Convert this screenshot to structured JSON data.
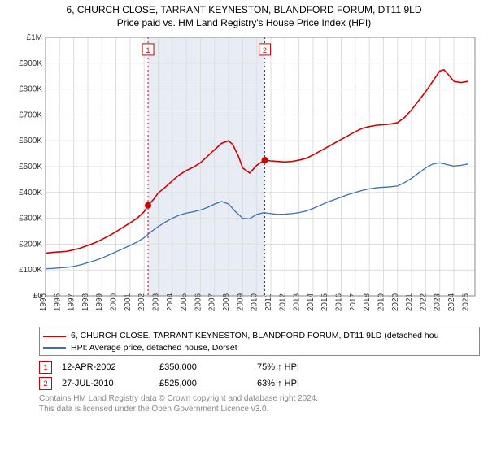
{
  "title_line1": "6, CHURCH CLOSE, TARRANT KEYNESTON, BLANDFORD FORUM, DT11 9LD",
  "title_line2": "Price paid vs. HM Land Registry's House Price Index (HPI)",
  "chart": {
    "type": "line",
    "plot_bg": "#ffffff",
    "shaded_bg": "#e8edf5",
    "grid_color": "#dddddd",
    "axis_color": "#888888",
    "x_years": [
      1995,
      1996,
      1997,
      1998,
      1999,
      2000,
      2001,
      2002,
      2003,
      2004,
      2005,
      2006,
      2007,
      2008,
      2009,
      2010,
      2011,
      2012,
      2013,
      2014,
      2015,
      2016,
      2017,
      2018,
      2019,
      2020,
      2021,
      2022,
      2023,
      2024,
      2025
    ],
    "x_min": 1995,
    "x_max": 2025.5,
    "y_min": 0,
    "y_max": 1000000,
    "y_ticks": [
      0,
      100000,
      200000,
      300000,
      400000,
      500000,
      600000,
      700000,
      800000,
      900000,
      1000000
    ],
    "y_tick_labels": [
      "£0",
      "£100K",
      "£200K",
      "£300K",
      "£400K",
      "£500K",
      "£600K",
      "£700K",
      "£800K",
      "£900K",
      "£1M"
    ],
    "shaded_start": 2002.28,
    "shaded_end": 2010.57,
    "series": [
      {
        "name": "property",
        "color": "#d40000",
        "width": 1.6,
        "points": [
          [
            1995.0,
            165000
          ],
          [
            1995.5,
            168000
          ],
          [
            1996.0,
            170000
          ],
          [
            1996.5,
            172000
          ],
          [
            1997.0,
            178000
          ],
          [
            1997.5,
            185000
          ],
          [
            1998.0,
            195000
          ],
          [
            1998.5,
            205000
          ],
          [
            1999.0,
            218000
          ],
          [
            1999.5,
            232000
          ],
          [
            2000.0,
            248000
          ],
          [
            2000.5,
            265000
          ],
          [
            2001.0,
            282000
          ],
          [
            2001.5,
            300000
          ],
          [
            2002.0,
            325000
          ],
          [
            2002.28,
            350000
          ],
          [
            2002.7,
            375000
          ],
          [
            2003.0,
            398000
          ],
          [
            2003.5,
            420000
          ],
          [
            2004.0,
            445000
          ],
          [
            2004.5,
            468000
          ],
          [
            2005.0,
            485000
          ],
          [
            2005.5,
            498000
          ],
          [
            2006.0,
            515000
          ],
          [
            2006.5,
            540000
          ],
          [
            2007.0,
            565000
          ],
          [
            2007.5,
            590000
          ],
          [
            2008.0,
            600000
          ],
          [
            2008.3,
            585000
          ],
          [
            2008.7,
            540000
          ],
          [
            2009.0,
            495000
          ],
          [
            2009.5,
            475000
          ],
          [
            2010.0,
            505000
          ],
          [
            2010.4,
            520000
          ],
          [
            2010.57,
            525000
          ],
          [
            2011.0,
            522000
          ],
          [
            2011.5,
            520000
          ],
          [
            2012.0,
            518000
          ],
          [
            2012.5,
            520000
          ],
          [
            2013.0,
            525000
          ],
          [
            2013.5,
            532000
          ],
          [
            2014.0,
            545000
          ],
          [
            2014.5,
            560000
          ],
          [
            2015.0,
            575000
          ],
          [
            2015.5,
            590000
          ],
          [
            2016.0,
            605000
          ],
          [
            2016.5,
            620000
          ],
          [
            2017.0,
            635000
          ],
          [
            2017.5,
            648000
          ],
          [
            2018.0,
            655000
          ],
          [
            2018.5,
            660000
          ],
          [
            2019.0,
            662000
          ],
          [
            2019.5,
            665000
          ],
          [
            2020.0,
            670000
          ],
          [
            2020.5,
            690000
          ],
          [
            2021.0,
            720000
          ],
          [
            2021.5,
            755000
          ],
          [
            2022.0,
            790000
          ],
          [
            2022.5,
            830000
          ],
          [
            2023.0,
            870000
          ],
          [
            2023.3,
            875000
          ],
          [
            2023.7,
            850000
          ],
          [
            2024.0,
            830000
          ],
          [
            2024.5,
            825000
          ],
          [
            2025.0,
            830000
          ]
        ]
      },
      {
        "name": "hpi",
        "color": "#3b6fb6",
        "width": 1.3,
        "points": [
          [
            1995.0,
            105000
          ],
          [
            1995.5,
            106000
          ],
          [
            1996.0,
            108000
          ],
          [
            1996.5,
            110000
          ],
          [
            1997.0,
            114000
          ],
          [
            1997.5,
            120000
          ],
          [
            1998.0,
            128000
          ],
          [
            1998.5,
            136000
          ],
          [
            1999.0,
            146000
          ],
          [
            1999.5,
            158000
          ],
          [
            2000.0,
            170000
          ],
          [
            2000.5,
            182000
          ],
          [
            2001.0,
            195000
          ],
          [
            2001.5,
            208000
          ],
          [
            2002.0,
            225000
          ],
          [
            2002.5,
            248000
          ],
          [
            2003.0,
            268000
          ],
          [
            2003.5,
            285000
          ],
          [
            2004.0,
            300000
          ],
          [
            2004.5,
            312000
          ],
          [
            2005.0,
            320000
          ],
          [
            2005.5,
            325000
          ],
          [
            2006.0,
            332000
          ],
          [
            2006.5,
            342000
          ],
          [
            2007.0,
            355000
          ],
          [
            2007.5,
            365000
          ],
          [
            2008.0,
            355000
          ],
          [
            2008.5,
            325000
          ],
          [
            2009.0,
            300000
          ],
          [
            2009.5,
            298000
          ],
          [
            2010.0,
            315000
          ],
          [
            2010.5,
            322000
          ],
          [
            2011.0,
            318000
          ],
          [
            2011.5,
            315000
          ],
          [
            2012.0,
            316000
          ],
          [
            2012.5,
            318000
          ],
          [
            2013.0,
            322000
          ],
          [
            2013.5,
            328000
          ],
          [
            2014.0,
            338000
          ],
          [
            2014.5,
            350000
          ],
          [
            2015.0,
            362000
          ],
          [
            2015.5,
            372000
          ],
          [
            2016.0,
            382000
          ],
          [
            2016.5,
            392000
          ],
          [
            2017.0,
            400000
          ],
          [
            2017.5,
            408000
          ],
          [
            2018.0,
            414000
          ],
          [
            2018.5,
            418000
          ],
          [
            2019.0,
            420000
          ],
          [
            2019.5,
            422000
          ],
          [
            2020.0,
            425000
          ],
          [
            2020.5,
            438000
          ],
          [
            2021.0,
            455000
          ],
          [
            2021.5,
            475000
          ],
          [
            2022.0,
            495000
          ],
          [
            2022.5,
            510000
          ],
          [
            2023.0,
            515000
          ],
          [
            2023.5,
            508000
          ],
          [
            2024.0,
            502000
          ],
          [
            2024.5,
            505000
          ],
          [
            2025.0,
            510000
          ]
        ]
      }
    ],
    "markers": [
      {
        "n": 1,
        "x": 2002.28,
        "y": 350000,
        "label_y": 950000,
        "color": "#d40000"
      },
      {
        "n": 2,
        "x": 2010.57,
        "y": 525000,
        "label_y": 950000,
        "color": "#d40000"
      }
    ]
  },
  "legend": [
    {
      "color": "#d40000",
      "label": "6, CHURCH CLOSE, TARRANT KEYNESTON, BLANDFORD FORUM, DT11 9LD (detached hou"
    },
    {
      "color": "#3b6fb6",
      "label": "HPI: Average price, detached house, Dorset"
    }
  ],
  "transactions": [
    {
      "n": 1,
      "color": "#d40000",
      "date": "12-APR-2002",
      "price": "£350,000",
      "hpi": "75% ↑ HPI"
    },
    {
      "n": 2,
      "color": "#d40000",
      "date": "27-JUL-2010",
      "price": "£525,000",
      "hpi": "63% ↑ HPI"
    }
  ],
  "footer1": "Contains HM Land Registry data © Crown copyright and database right 2024.",
  "footer2": "This data is licensed under the Open Government Licence v3.0."
}
